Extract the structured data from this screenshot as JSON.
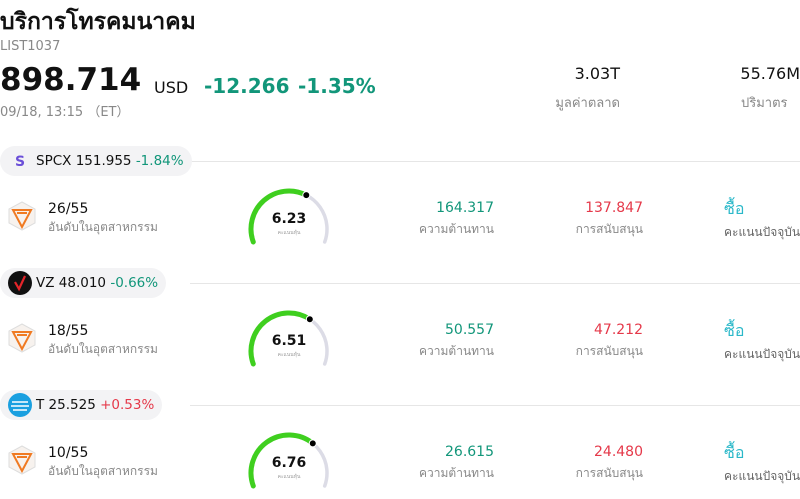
{
  "header": {
    "title": "บริการโทรคมนาคม",
    "code": "LIST1037",
    "price": "898.714",
    "currency": "USD",
    "change": "-12.266",
    "change_pct": "-1.35%",
    "time": "09/18, 13:15 （ET）",
    "stats": [
      {
        "value": "3.03T",
        "label": "มูลค่าตลาด"
      },
      {
        "value": "55.76M",
        "label": "ปริมาตร"
      }
    ]
  },
  "stocks": [
    {
      "logo_text": "S",
      "ticker": "SPCX",
      "price": "151.955",
      "change": "-1.84%",
      "rank": "26/55",
      "rank_label": "อันดับในอุตสาหกรรม",
      "score": 6.23,
      "score_label": "คะแนนหุ้น",
      "resistance": "164.317",
      "resistance_label": "ความต้านทาน",
      "support": "137.847",
      "support_label": "การสนับสนุน",
      "action": "ซื้อ",
      "action_label": "คะแนนปัจจุบัน"
    },
    {
      "ticker": "VZ",
      "price": "48.010",
      "change": "-0.66%",
      "rank": "18/55",
      "rank_label": "อันดับในอุตสาหกรรม",
      "score": 6.51,
      "score_label": "คะแนนหุ้น",
      "resistance": "50.557",
      "resistance_label": "ความต้านทาน",
      "support": "47.212",
      "support_label": "การสนับสนุน",
      "action": "ซื้อ",
      "action_label": "คะแนนปัจจุบัน"
    },
    {
      "ticker": "T",
      "price": "25.525",
      "change": "+0.53%",
      "rank": "10/55",
      "rank_label": "อันดับในอุตสาหกรรม",
      "score": 6.76,
      "score_label": "คะแนนหุ้น",
      "resistance": "26.615",
      "resistance_label": "ความต้านทาน",
      "support": "24.480",
      "support_label": "การสนับสนุน",
      "action": "ซื้อ",
      "action_label": "คะแนนปัจจุบัน"
    }
  ]
}
